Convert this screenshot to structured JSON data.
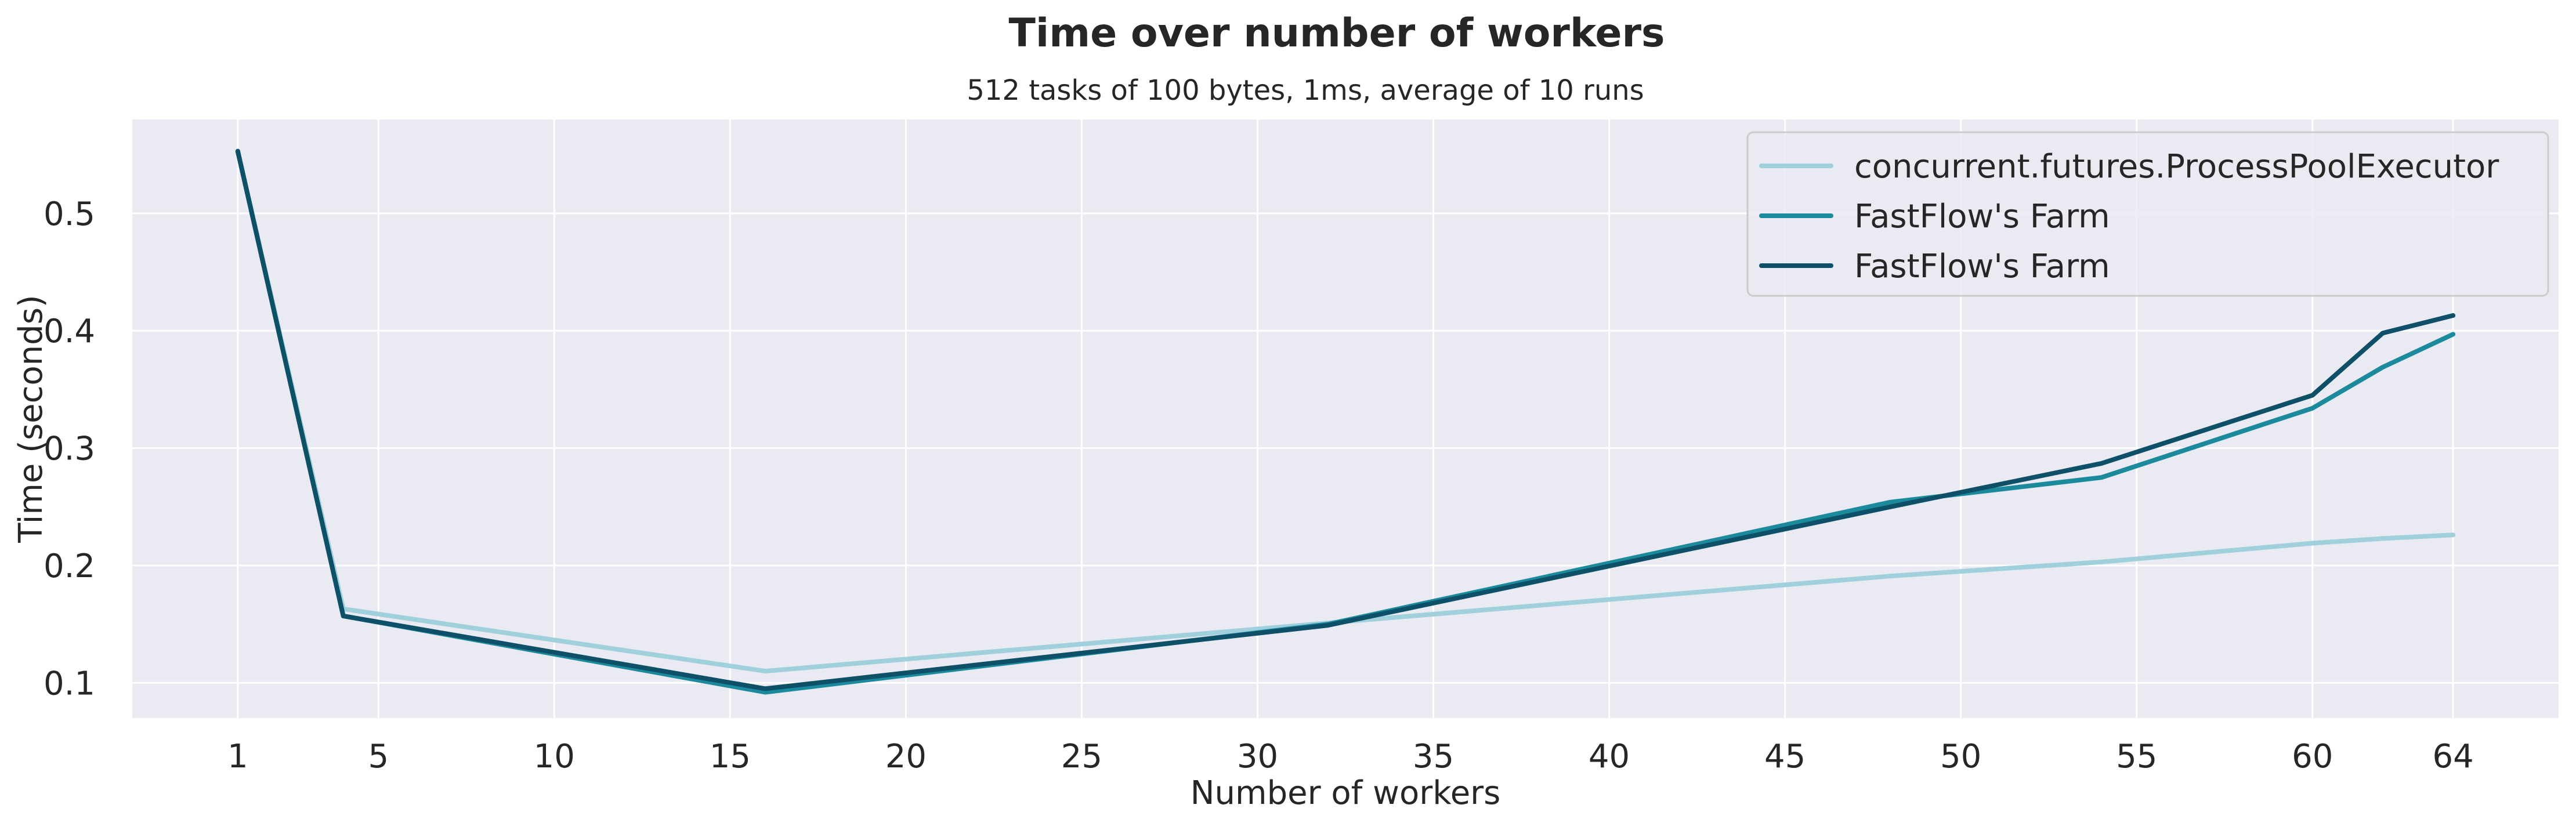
{
  "chart_data": {
    "type": "line",
    "title": "Time over number of workers",
    "subtitle": "512 tasks of 100 bytes, 1ms, average of 10 runs",
    "xlabel": "Number of workers",
    "ylabel": "Time (seconds)",
    "xlim": [
      -2,
      67
    ],
    "ylim": [
      0.07,
      0.58
    ],
    "xticks": [
      1,
      5,
      10,
      15,
      20,
      25,
      30,
      35,
      40,
      45,
      50,
      55,
      60,
      64
    ],
    "yticks": [
      0.1,
      0.2,
      0.3,
      0.4,
      0.5
    ],
    "grid": true,
    "legend_position": "top-right",
    "series": [
      {
        "name": "concurrent.futures.ProcessPoolExecutor",
        "color": "#9fd0dc",
        "x": [
          1,
          4,
          16,
          32,
          48,
          54,
          60,
          62,
          64
        ],
        "y": [
          0.553,
          0.163,
          0.11,
          0.151,
          0.191,
          0.203,
          0.219,
          0.223,
          0.226
        ]
      },
      {
        "name": "FastFlow's Farm",
        "color": "#1b8a9d",
        "x": [
          1,
          4,
          16,
          32,
          48,
          54,
          60,
          62,
          64
        ],
        "y": [
          0.553,
          0.157,
          0.092,
          0.15,
          0.254,
          0.275,
          0.334,
          0.369,
          0.397
        ]
      },
      {
        "name": "FastFlow's Farm",
        "color": "#0e5068",
        "x": [
          1,
          4,
          16,
          32,
          48,
          54,
          60,
          62,
          64
        ],
        "y": [
          0.553,
          0.157,
          0.095,
          0.149,
          0.25,
          0.287,
          0.345,
          0.398,
          0.413
        ]
      }
    ]
  }
}
